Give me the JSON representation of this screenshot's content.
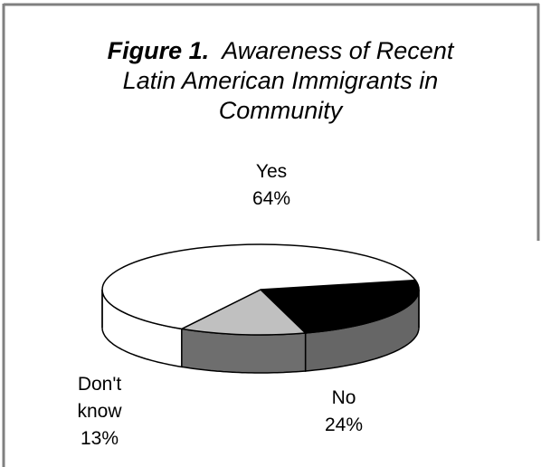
{
  "chart_data": {
    "type": "pie",
    "title_prefix": "Figure 1.",
    "title_lines": [
      "Awareness of Recent",
      "Latin American Immigrants in",
      "Community"
    ],
    "categories": [
      "Yes",
      "No",
      "Don't know"
    ],
    "values": [
      64,
      24,
      13
    ],
    "value_labels": [
      "64%",
      "24%",
      "13%"
    ],
    "label_lines": [
      [
        "Yes",
        "64%"
      ],
      [
        "No",
        "24%"
      ],
      [
        "Don't",
        "know",
        "13%"
      ]
    ],
    "colors": {
      "Yes": "#ffffff",
      "No": "#000000",
      "Don't know": "#c0c0c0",
      "No_side": "#666666",
      "Dont_know_side": "#6e6e6e"
    },
    "legend": "none",
    "style": "3d-pie"
  }
}
